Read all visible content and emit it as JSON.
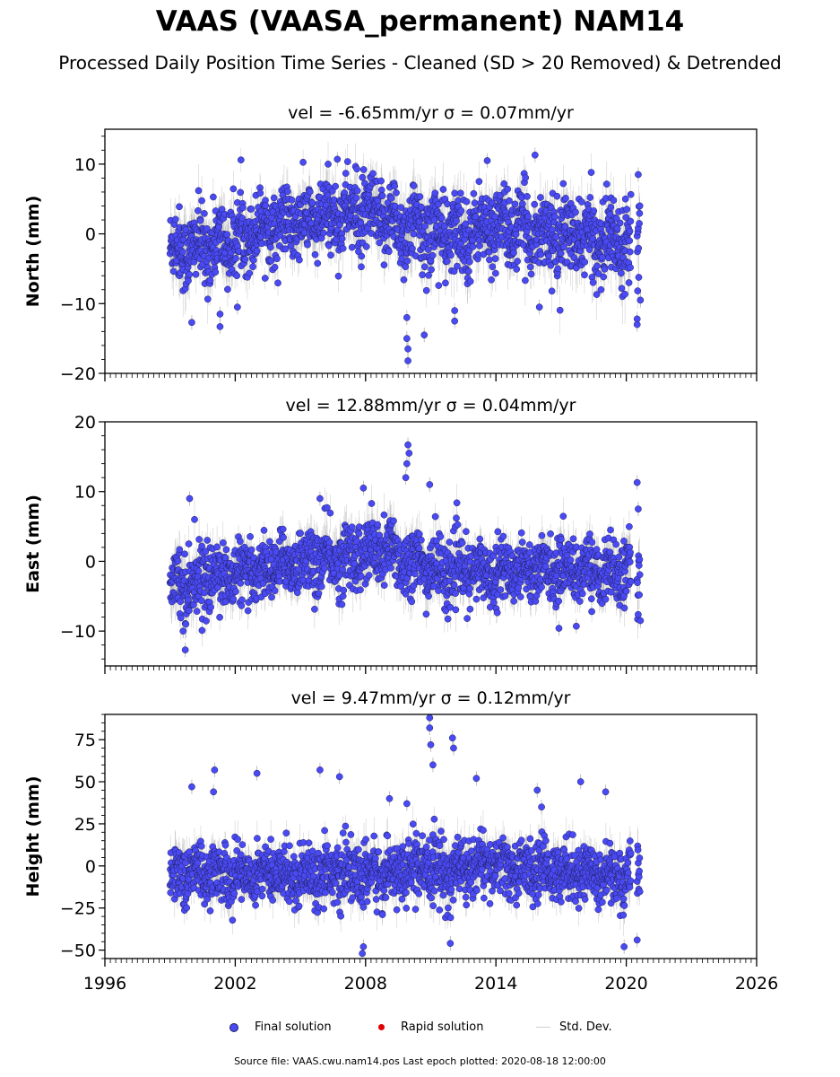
{
  "title": "VAAS (VAASA_permanent) NAM14",
  "subtitle": "Processed Daily Position Time Series - Cleaned (SD > 20 Removed) & Detrended",
  "colors": {
    "final": "#4a4af5",
    "final_edge": "#1f1f5c",
    "rapid": "#e00000",
    "stddev": "#c8c8c8"
  },
  "legend": {
    "final": "Final solution",
    "rapid": "Rapid solution",
    "stddev": "Std. Dev."
  },
  "footer": "Source file: VAAS.cwu.nam14.pos  Last epoch plotted: 2020-08-18 12:00:00",
  "chart_data": [
    {
      "type": "scatter",
      "title": "vel = -6.65mm/yr   σ = 0.07mm/yr",
      "ylabel": "North (mm)",
      "xlim": [
        1996,
        2026
      ],
      "ylim": [
        -20,
        15
      ],
      "yticks": [
        -20,
        -10,
        0,
        10
      ],
      "xticks": [
        1996,
        2002,
        2008,
        2014,
        2020,
        2026
      ],
      "x_range_data": [
        1999.0,
        2020.63
      ],
      "gap": [
        2020.22,
        2020.5
      ],
      "envelope": {
        "x": [
          1999,
          2000,
          2001,
          2002,
          2003,
          2004,
          2005,
          2006,
          2007,
          2008,
          2009,
          2010,
          2011,
          2012,
          2013,
          2014,
          2015,
          2016,
          2017,
          2018,
          2019,
          2020,
          2020.6
        ],
        "center": [
          -2.0,
          -2.2,
          -1.5,
          -1.0,
          1.0,
          1.2,
          1.5,
          2.0,
          3.0,
          2.5,
          2.0,
          0.5,
          0.5,
          -0.5,
          0.5,
          1.0,
          0.5,
          0.5,
          -0.5,
          -0.5,
          -1.0,
          -0.5,
          0.0
        ],
        "spread": [
          4.5,
          4.5,
          4.5,
          4.5,
          4.0,
          4.0,
          4.0,
          4.5,
          4.5,
          4.5,
          4.5,
          5.0,
          5.0,
          5.0,
          4.5,
          4.5,
          4.5,
          4.5,
          4.5,
          4.5,
          4.5,
          5.0,
          5.0
        ]
      },
      "outliers": [
        {
          "x": 2000.0,
          "y": -12.7
        },
        {
          "x": 2001.3,
          "y": -13.3
        },
        {
          "x": 2001.3,
          "y": -11.5
        },
        {
          "x": 2002.1,
          "y": -10.5
        },
        {
          "x": 2006.7,
          "y": 10.7
        },
        {
          "x": 2007.6,
          "y": 9.3
        },
        {
          "x": 2009.9,
          "y": -12.0
        },
        {
          "x": 2009.9,
          "y": -15.0
        },
        {
          "x": 2009.95,
          "y": -16.5
        },
        {
          "x": 2009.95,
          "y": -18.2
        },
        {
          "x": 2010.7,
          "y": -14.5
        },
        {
          "x": 2012.1,
          "y": -11.0
        },
        {
          "x": 2012.1,
          "y": -12.5
        },
        {
          "x": 2013.6,
          "y": 10.5
        },
        {
          "x": 2015.8,
          "y": 11.3
        },
        {
          "x": 2016.0,
          "y": -10.5
        },
        {
          "x": 2020.5,
          "y": -12.2
        },
        {
          "x": 2020.5,
          "y": -13.0
        },
        {
          "x": 2020.65,
          "y": -9.5
        },
        {
          "x": 2020.55,
          "y": 8.5
        }
      ]
    },
    {
      "type": "scatter",
      "title": "vel = 12.88mm/yr   σ = 0.04mm/yr",
      "ylabel": "East (mm)",
      "xlim": [
        1996,
        2026
      ],
      "ylim": [
        -15,
        20
      ],
      "yticks": [
        -10,
        0,
        10,
        20
      ],
      "xticks": [
        1996,
        2002,
        2008,
        2014,
        2020,
        2026
      ],
      "x_range_data": [
        1999.0,
        2020.63
      ],
      "gap": [
        2020.22,
        2020.5
      ],
      "envelope": {
        "x": [
          1999,
          2000,
          2001,
          2002,
          2003,
          2004,
          2005,
          2006,
          2007,
          2008,
          2009,
          2010,
          2011,
          2012,
          2013,
          2014,
          2015,
          2016,
          2017,
          2018,
          2019,
          2020,
          2020.6
        ],
        "center": [
          -2.5,
          -3.0,
          -2.0,
          -2.0,
          -1.5,
          -0.5,
          0.0,
          0.0,
          0.5,
          1.0,
          1.5,
          0.0,
          -1.0,
          -1.5,
          -1.5,
          -1.5,
          -1.0,
          -1.0,
          -1.0,
          -1.0,
          -1.5,
          -1.5,
          -2.0
        ],
        "spread": [
          4.0,
          4.0,
          4.0,
          3.5,
          3.5,
          3.5,
          3.5,
          4.0,
          4.0,
          4.0,
          4.0,
          4.0,
          4.0,
          4.0,
          3.5,
          3.5,
          3.5,
          3.5,
          3.5,
          3.5,
          3.5,
          4.0,
          4.0
        ]
      },
      "outliers": [
        {
          "x": 1999.9,
          "y": 9.0
        },
        {
          "x": 1999.7,
          "y": -12.7
        },
        {
          "x": 1999.6,
          "y": -10.0
        },
        {
          "x": 2007.9,
          "y": 10.5
        },
        {
          "x": 2009.85,
          "y": 12.0
        },
        {
          "x": 2009.9,
          "y": 14.0
        },
        {
          "x": 2009.95,
          "y": 16.7
        },
        {
          "x": 2010.0,
          "y": 15.5
        },
        {
          "x": 2010.95,
          "y": 11.0
        },
        {
          "x": 2005.9,
          "y": 9.0
        },
        {
          "x": 2016.9,
          "y": -9.6
        },
        {
          "x": 2017.7,
          "y": -9.3
        },
        {
          "x": 2020.5,
          "y": 11.3
        },
        {
          "x": 2020.55,
          "y": 7.5
        },
        {
          "x": 2020.65,
          "y": -8.5
        }
      ]
    },
    {
      "type": "scatter",
      "title": "vel = 9.47mm/yr   σ = 0.12mm/yr",
      "ylabel": "Height (mm)",
      "xlim": [
        1996,
        2026
      ],
      "ylim": [
        -55,
        90
      ],
      "yticks": [
        -50,
        -25,
        0,
        25,
        50,
        75
      ],
      "xticks": [
        1996,
        2002,
        2008,
        2014,
        2020,
        2026
      ],
      "xtick_labels": [
        "1996",
        "2002",
        "2008",
        "2014",
        "2020",
        "2026"
      ],
      "x_range_data": [
        1999.0,
        2020.63
      ],
      "gap": [
        2020.22,
        2020.5
      ],
      "envelope": {
        "x": [
          1999,
          2000,
          2001,
          2002,
          2003,
          2004,
          2005,
          2006,
          2007,
          2008,
          2009,
          2010,
          2011,
          2012,
          2013,
          2014,
          2015,
          2016,
          2017,
          2018,
          2019,
          2020,
          2020.6
        ],
        "center": [
          -5,
          -4,
          -4,
          -6,
          -3,
          -5,
          -5,
          -4,
          -5,
          -6,
          -4,
          -3,
          -2,
          -4,
          0,
          0,
          -2,
          -3,
          -2,
          -4,
          -5,
          -6,
          -5
        ],
        "spread": [
          14,
          14,
          14,
          14,
          14,
          14,
          14,
          14,
          14,
          16,
          14,
          14,
          16,
          16,
          14,
          14,
          14,
          14,
          14,
          14,
          14,
          16,
          16
        ]
      },
      "outliers": [
        {
          "x": 2000.0,
          "y": 47
        },
        {
          "x": 2001.05,
          "y": 57
        },
        {
          "x": 2001.0,
          "y": 44
        },
        {
          "x": 2003.0,
          "y": 55
        },
        {
          "x": 2005.9,
          "y": 57
        },
        {
          "x": 2006.8,
          "y": 53
        },
        {
          "x": 2007.9,
          "y": -48
        },
        {
          "x": 2007.85,
          "y": -52
        },
        {
          "x": 2009.1,
          "y": 40
        },
        {
          "x": 2009.9,
          "y": 37
        },
        {
          "x": 2010.95,
          "y": 88
        },
        {
          "x": 2010.95,
          "y": 82
        },
        {
          "x": 2011.0,
          "y": 72
        },
        {
          "x": 2011.1,
          "y": 60
        },
        {
          "x": 2012.0,
          "y": 76
        },
        {
          "x": 2012.05,
          "y": 70
        },
        {
          "x": 2011.9,
          "y": -46
        },
        {
          "x": 2013.1,
          "y": 52
        },
        {
          "x": 2015.9,
          "y": 45
        },
        {
          "x": 2016.1,
          "y": 35
        },
        {
          "x": 2017.9,
          "y": 50
        },
        {
          "x": 2019.05,
          "y": 44
        },
        {
          "x": 2019.9,
          "y": -48
        },
        {
          "x": 2020.5,
          "y": -44
        }
      ]
    }
  ]
}
